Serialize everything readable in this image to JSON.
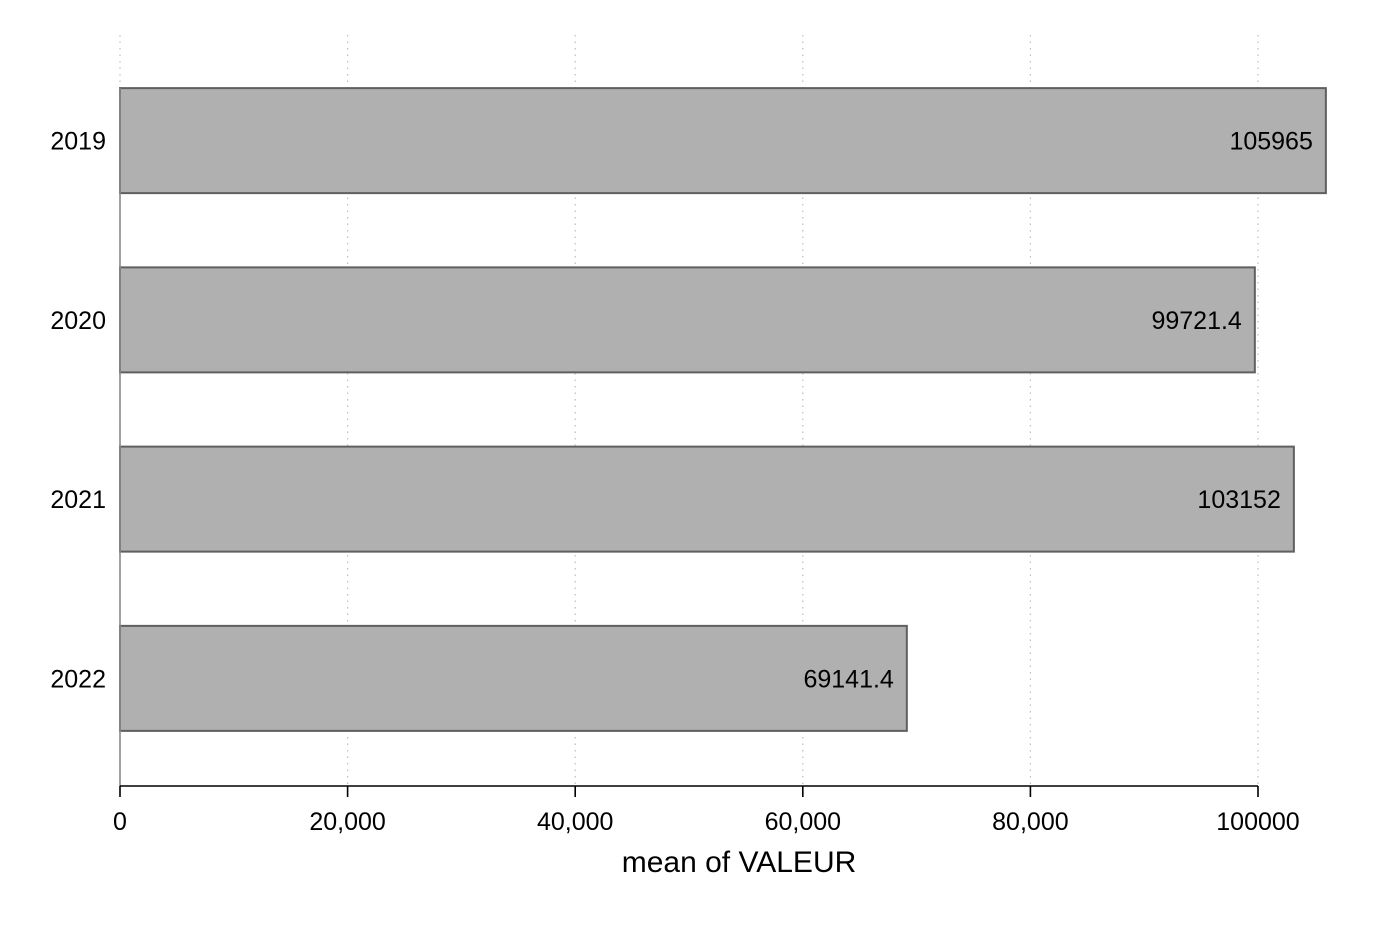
{
  "chart_data": {
    "type": "bar",
    "orientation": "horizontal",
    "categories": [
      "2019",
      "2020",
      "2021",
      "2022"
    ],
    "values": [
      105965,
      99721.4,
      103152,
      69141.4
    ],
    "value_labels": [
      "105965",
      "99721.4",
      "103152",
      "69141.4"
    ],
    "xlabel": "mean of VALEUR",
    "ylabel": "",
    "xlim": [
      0,
      100000
    ],
    "x_ticks": [
      0,
      20000,
      40000,
      60000,
      80000,
      100000
    ],
    "x_tick_labels": [
      "0",
      "20,000",
      "40,000",
      "60,000",
      "80,000",
      "100000"
    ],
    "grid": "vertical dotted",
    "legend": "none",
    "bar_color": "#b0b0b0",
    "bar_edge_color": "#5f5f5f"
  }
}
